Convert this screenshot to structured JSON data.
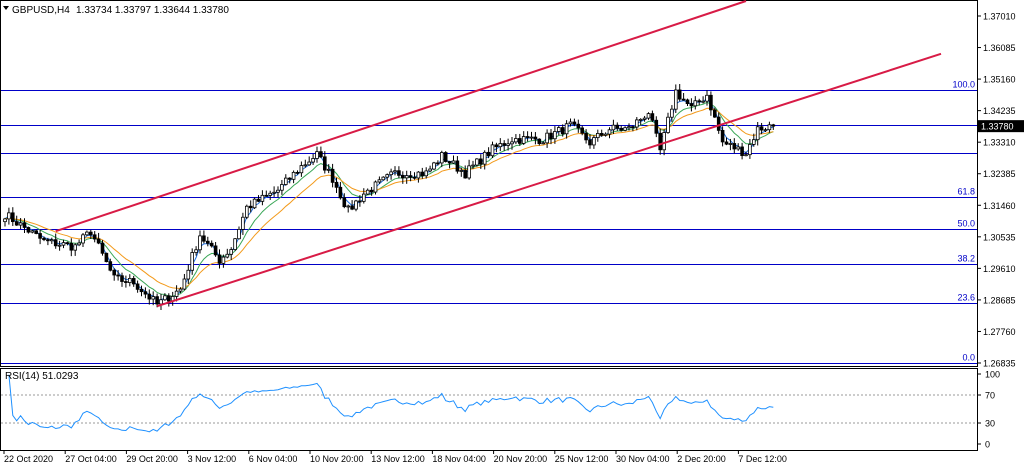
{
  "chart_data": [
    {
      "type": "candlestick",
      "symbol_header": "GBPUSD,H4",
      "ohlc_header": "1.33734 1.33797 1.33644 1.33780",
      "current_price_label": "1.33780",
      "y_tick_labels": [
        "1.37010",
        "1.36085",
        "1.35160",
        "1.34235",
        "1.33310",
        "1.32385",
        "1.31460",
        "1.30535",
        "1.29610",
        "1.28685",
        "1.27760",
        "1.26835"
      ],
      "ylim": [
        1.26835,
        1.3701
      ],
      "x_tick_labels": [
        "22 Oct 2020",
        "27 Oct 04:00",
        "29 Oct 20:00",
        "3 Nov 12:00",
        "6 Nov 04:00",
        "10 Nov 20:00",
        "13 Nov 12:00",
        "18 Nov 04:00",
        "20 Nov 20:00",
        "25 Nov 12:00",
        "30 Nov 04:00",
        "2 Dec 20:00",
        "7 Dec 12:00"
      ],
      "fibonacci_levels": [
        {
          "label": "100.0",
          "price": 1.3485
        },
        {
          "label": "61.8",
          "price": 1.317
        },
        {
          "label": "50.0",
          "price": 1.3075
        },
        {
          "label": "38.2",
          "price": 1.2975
        },
        {
          "label": "23.6",
          "price": 1.286
        },
        {
          "label": "0.0",
          "price": 1.2683
        }
      ],
      "horizontal_lines": [
        1.338,
        1.33
      ],
      "channel": {
        "lower": {
          "start_bar": 39,
          "start_price": 1.285,
          "end_bar": 240,
          "end_price": 1.359
        },
        "upper": {
          "start_bar": 13,
          "start_price": 1.307,
          "end_bar": 190,
          "end_price": 1.3745
        },
        "color": "#d81b46"
      },
      "moving_averages": [
        {
          "color": "#1e6fe0",
          "smoothing": 3
        },
        {
          "color": "#3aa757",
          "smoothing": 8
        },
        {
          "color": "#f39a1b",
          "smoothing": 16
        }
      ],
      "price_path": [
        [
          0,
          1.312
        ],
        [
          10,
          1.304
        ],
        [
          18,
          1.3025
        ],
        [
          22,
          1.307
        ],
        [
          28,
          1.293
        ],
        [
          33,
          1.292
        ],
        [
          39,
          1.2855
        ],
        [
          45,
          1.29
        ],
        [
          50,
          1.306
        ],
        [
          55,
          1.2985
        ],
        [
          58,
          1.302
        ],
        [
          62,
          1.314
        ],
        [
          70,
          1.319
        ],
        [
          76,
          1.326
        ],
        [
          80,
          1.3295
        ],
        [
          84,
          1.3225
        ],
        [
          88,
          1.313
        ],
        [
          92,
          1.318
        ],
        [
          100,
          1.324
        ],
        [
          108,
          1.324
        ],
        [
          112,
          1.329
        ],
        [
          118,
          1.324
        ],
        [
          125,
          1.331
        ],
        [
          130,
          1.334
        ],
        [
          138,
          1.334
        ],
        [
          145,
          1.338
        ],
        [
          150,
          1.333
        ],
        [
          155,
          1.337
        ],
        [
          160,
          1.337
        ],
        [
          165,
          1.342
        ],
        [
          168,
          1.3305
        ],
        [
          172,
          1.348
        ],
        [
          176,
          1.343
        ],
        [
          180,
          1.347
        ],
        [
          184,
          1.333
        ],
        [
          188,
          1.331
        ],
        [
          190,
          1.33
        ],
        [
          193,
          1.337
        ],
        [
          197,
          1.338
        ]
      ]
    },
    {
      "type": "line",
      "indicator_header": "RSI(14) 51.0293",
      "y_tick_labels": [
        "100",
        "70",
        "30",
        "0"
      ],
      "ylim": [
        0,
        100
      ],
      "levels": [
        70,
        30
      ],
      "line_color": "#1e90ff"
    }
  ]
}
